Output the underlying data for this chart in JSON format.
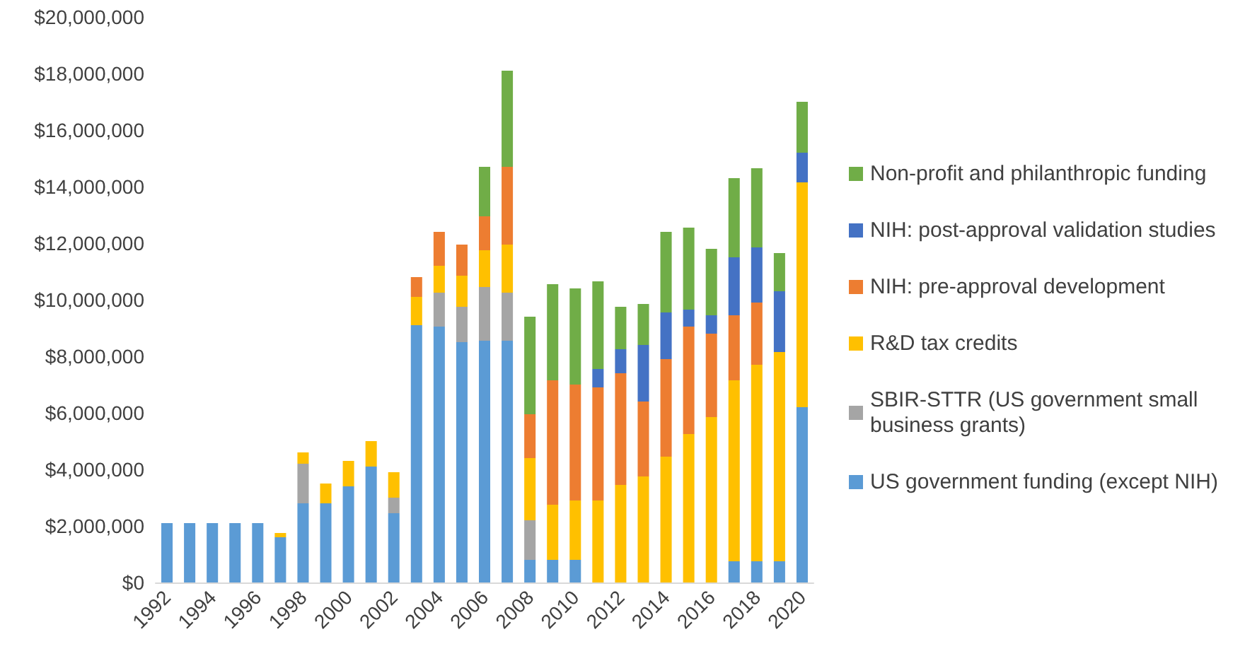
{
  "chart_data": {
    "type": "bar",
    "stacked": true,
    "grid": false,
    "legend": "right",
    "categories": [
      "1992",
      null,
      "1994",
      null,
      "1996",
      null,
      "1998",
      null,
      "2000",
      null,
      "2002",
      null,
      "2004",
      null,
      "2006",
      null,
      "2008",
      null,
      "2010",
      null,
      "2012",
      null,
      "2014",
      null,
      "2016",
      null,
      "2018",
      null,
      "2020"
    ],
    "ylim": [
      0,
      20000000
    ],
    "yticks": [
      {
        "value": 0,
        "label": "$0"
      },
      {
        "value": 2000000,
        "label": "$2,000,000"
      },
      {
        "value": 4000000,
        "label": "$4,000,000"
      },
      {
        "value": 6000000,
        "label": "$6,000,000"
      },
      {
        "value": 8000000,
        "label": "$8,000,000"
      },
      {
        "value": 10000000,
        "label": "$10,000,000"
      },
      {
        "value": 12000000,
        "label": "$12,000,000"
      },
      {
        "value": 14000000,
        "label": "$14,000,000"
      },
      {
        "value": 16000000,
        "label": "$16,000,000"
      },
      {
        "value": 18000000,
        "label": "$18,000,000"
      },
      {
        "value": 20000000,
        "label": "$20,000,000"
      }
    ],
    "series": [
      {
        "name": "US government funding (except NIH)",
        "color": "#5b9bd5",
        "values": [
          2100000,
          2100000,
          2100000,
          2100000,
          2100000,
          1600000,
          2800000,
          2800000,
          3400000,
          4100000,
          2450000,
          9100000,
          9050000,
          8500000,
          8550000,
          8550000,
          800000,
          800000,
          800000,
          null,
          null,
          null,
          null,
          null,
          null,
          750000,
          750000,
          750000,
          6200000
        ]
      },
      {
        "name": "SBIR-STTR (US government small business grants)",
        "color": "#a5a5a5",
        "values": [
          null,
          null,
          null,
          null,
          null,
          null,
          1400000,
          null,
          null,
          null,
          550000,
          null,
          1200000,
          1250000,
          1900000,
          1700000,
          1400000,
          null,
          null,
          null,
          null,
          null,
          null,
          null,
          null,
          null,
          null,
          null,
          null
        ]
      },
      {
        "name": "R&D tax credits",
        "color": "#ffc000",
        "values": [
          null,
          null,
          null,
          null,
          null,
          150000,
          400000,
          700000,
          900000,
          900000,
          900000,
          1000000,
          950000,
          1100000,
          1300000,
          1700000,
          2200000,
          1950000,
          2100000,
          2900000,
          3450000,
          3750000,
          4450000,
          5250000,
          5850000,
          6400000,
          6950000,
          7400000,
          7950000
        ]
      },
      {
        "name": "NIH: pre-approval development",
        "color": "#ed7d31",
        "values": [
          null,
          null,
          null,
          null,
          null,
          null,
          null,
          null,
          null,
          null,
          null,
          700000,
          1200000,
          1100000,
          1200000,
          2750000,
          1550000,
          4400000,
          4100000,
          4000000,
          3950000,
          2650000,
          3450000,
          3800000,
          2950000,
          2300000,
          2200000,
          null,
          null
        ]
      },
      {
        "name": "NIH: post-approval validation studies",
        "color": "#4472c4",
        "values": [
          null,
          null,
          null,
          null,
          null,
          null,
          null,
          null,
          null,
          null,
          null,
          null,
          null,
          null,
          null,
          null,
          null,
          null,
          null,
          650000,
          850000,
          2000000,
          1650000,
          600000,
          650000,
          2050000,
          1950000,
          2150000,
          1050000
        ]
      },
      {
        "name": "Non-profit and philanthropic funding",
        "color": "#70ad47",
        "values": [
          null,
          null,
          null,
          null,
          null,
          null,
          null,
          null,
          null,
          null,
          null,
          null,
          null,
          null,
          1750000,
          3400000,
          3450000,
          3400000,
          3400000,
          3100000,
          1500000,
          1450000,
          2850000,
          2900000,
          2350000,
          2800000,
          2800000,
          1350000,
          1800000
        ]
      }
    ]
  }
}
